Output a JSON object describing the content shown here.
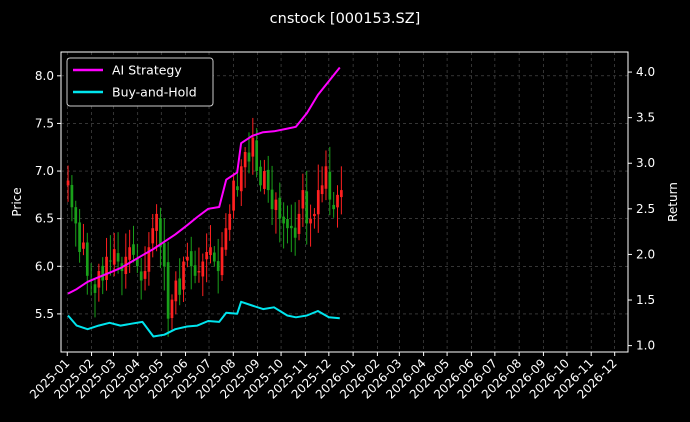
{
  "chart_data": {
    "type": "line",
    "title": "cnstock [000153.SZ]",
    "ylabel_left": "Price",
    "ylabel_right": "Return",
    "x_ticks": [
      "2025-01",
      "2025-02",
      "2025-03",
      "2025-04",
      "2025-05",
      "2025-06",
      "2025-07",
      "2025-08",
      "2025-09",
      "2025-10",
      "2025-11",
      "2025-12",
      "2026-01",
      "2026-02",
      "2026-03",
      "2026-04",
      "2026-05",
      "2026-06",
      "2026-07",
      "2026-08",
      "2026-09",
      "2026-10",
      "2026-11",
      "2026-12"
    ],
    "xlim": [
      "2024-12-24",
      "2026-12-18"
    ],
    "y_left_ticks": [
      "5.5",
      "6.0",
      "6.5",
      "7.0",
      "7.5",
      "8.0"
    ],
    "ylim_left": [
      5.1,
      8.25
    ],
    "y_right_ticks": [
      "1.0",
      "1.5",
      "2.0",
      "2.5",
      "3.0",
      "3.5",
      "4.0"
    ],
    "ylim_right": [
      0.93,
      4.22
    ],
    "grid": true,
    "legend_position": "top-left",
    "colors": {
      "background": "#000000",
      "grid": "#555555",
      "strategy": "#ff00ff",
      "buyhold": "#00e5ee",
      "candle_up": "#ff2020",
      "candle_down": "#1aa01a"
    },
    "series": [
      {
        "name": "AI Strategy",
        "axis": "right",
        "points": [
          [
            "2025-01-02",
            1.57
          ],
          [
            "2025-01-13",
            1.62
          ],
          [
            "2025-01-27",
            1.7
          ],
          [
            "2025-02-10",
            1.75
          ],
          [
            "2025-02-24",
            1.8
          ],
          [
            "2025-03-10",
            1.85
          ],
          [
            "2025-03-24",
            1.92
          ],
          [
            "2025-04-07",
            1.99
          ],
          [
            "2025-04-21",
            2.06
          ],
          [
            "2025-05-05",
            2.14
          ],
          [
            "2025-05-19",
            2.22
          ],
          [
            "2025-06-03",
            2.32
          ],
          [
            "2025-06-16",
            2.41
          ],
          [
            "2025-06-30",
            2.5
          ],
          [
            "2025-07-14",
            2.52
          ],
          [
            "2025-07-23",
            2.82
          ],
          [
            "2025-08-06",
            2.9
          ],
          [
            "2025-08-11",
            3.22
          ],
          [
            "2025-08-25",
            3.3
          ],
          [
            "2025-09-08",
            3.34
          ],
          [
            "2025-09-22",
            3.35
          ],
          [
            "2025-10-09",
            3.38
          ],
          [
            "2025-10-20",
            3.4
          ],
          [
            "2025-11-03",
            3.55
          ],
          [
            "2025-11-17",
            3.75
          ],
          [
            "2025-12-01",
            3.9
          ],
          [
            "2025-12-15",
            4.05
          ]
        ]
      },
      {
        "name": "Buy-and-Hold",
        "axis": "right",
        "points": [
          [
            "2025-01-02",
            1.33
          ],
          [
            "2025-01-13",
            1.22
          ],
          [
            "2025-01-27",
            1.18
          ],
          [
            "2025-02-10",
            1.22
          ],
          [
            "2025-02-24",
            1.25
          ],
          [
            "2025-03-10",
            1.22
          ],
          [
            "2025-03-24",
            1.24
          ],
          [
            "2025-04-07",
            1.26
          ],
          [
            "2025-04-21",
            1.1
          ],
          [
            "2025-05-05",
            1.12
          ],
          [
            "2025-05-19",
            1.18
          ],
          [
            "2025-06-03",
            1.21
          ],
          [
            "2025-06-16",
            1.22
          ],
          [
            "2025-06-30",
            1.27
          ],
          [
            "2025-07-14",
            1.26
          ],
          [
            "2025-07-23",
            1.36
          ],
          [
            "2025-08-06",
            1.35
          ],
          [
            "2025-08-11",
            1.48
          ],
          [
            "2025-08-25",
            1.44
          ],
          [
            "2025-09-08",
            1.4
          ],
          [
            "2025-09-22",
            1.42
          ],
          [
            "2025-10-09",
            1.33
          ],
          [
            "2025-10-20",
            1.31
          ],
          [
            "2025-11-03",
            1.33
          ],
          [
            "2025-11-17",
            1.38
          ],
          [
            "2025-12-01",
            1.31
          ],
          [
            "2025-12-15",
            1.3
          ]
        ]
      }
    ],
    "candles": {
      "axis": "left",
      "dates_from": "2025-01-02",
      "dates_to": "2025-12-17",
      "closes": [
        6.9,
        6.62,
        6.45,
        6.15,
        6.25,
        5.9,
        5.85,
        5.72,
        5.95,
        5.85,
        6.1,
        6.05,
        6.18,
        6.05,
        5.95,
        6.1,
        6.2,
        6.12,
        6.0,
        5.85,
        5.95,
        6.2,
        6.4,
        6.55,
        6.2,
        6.0,
        5.45,
        5.65,
        5.85,
        5.7,
        6.05,
        6.1,
        6.0,
        5.9,
        5.95,
        6.05,
        6.15,
        6.2,
        6.05,
        5.95,
        6.2,
        6.4,
        6.55,
        6.9,
        6.8,
        7.05,
        7.2,
        7.1,
        7.35,
        7.0,
        6.85,
        7.0,
        6.8,
        6.6,
        6.7,
        6.5,
        6.45,
        6.4,
        6.4,
        6.3,
        6.55,
        6.8,
        6.45,
        6.5,
        6.55,
        6.8,
        6.85,
        7.05,
        6.7,
        6.6,
        6.75,
        6.8
      ]
    }
  }
}
